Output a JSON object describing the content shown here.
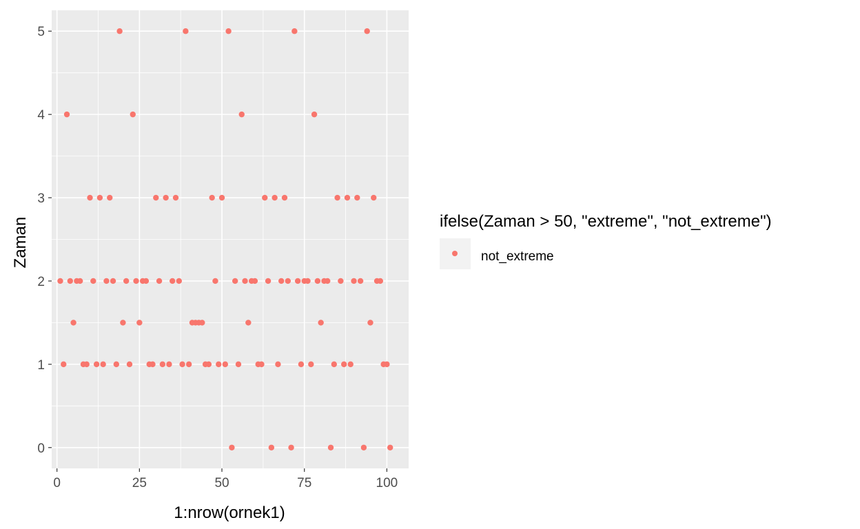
{
  "chart_data": {
    "type": "scatter",
    "xlabel": "1:nrow(ornek1)",
    "ylabel": "Zaman",
    "xlim": [
      -1.6,
      106.6
    ],
    "ylim": [
      -0.25,
      5.25
    ],
    "x_ticks": [
      0,
      25,
      50,
      75,
      100
    ],
    "x_tick_labels": [
      "0",
      "25",
      "50",
      "75",
      "100"
    ],
    "y_ticks": [
      0,
      1,
      2,
      3,
      4,
      5
    ],
    "y_tick_labels": [
      "0",
      "1",
      "2",
      "3",
      "4",
      "5"
    ],
    "grid": true,
    "panel_background": "#ebebeb",
    "legend": {
      "title": "ifelse(Zaman > 50, \"extreme\", \"not_extreme\")",
      "placement": "right",
      "entries": [
        {
          "label": "not_extreme",
          "color": "#f8766d"
        }
      ]
    },
    "series": [
      {
        "name": "not_extreme",
        "color": "#f8766d",
        "x": [
          1,
          2,
          3,
          4,
          5,
          6,
          7,
          8,
          9,
          10,
          11,
          12,
          13,
          14,
          15,
          16,
          17,
          18,
          19,
          20,
          21,
          22,
          23,
          24,
          25,
          26,
          27,
          28,
          29,
          30,
          31,
          32,
          33,
          34,
          35,
          36,
          37,
          38,
          39,
          40,
          41,
          42,
          43,
          44,
          45,
          46,
          47,
          48,
          49,
          50,
          51,
          52,
          53,
          54,
          55,
          56,
          57,
          58,
          59,
          60,
          61,
          62,
          63,
          64,
          65,
          66,
          67,
          68,
          69,
          70,
          71,
          72,
          73,
          74,
          75,
          76,
          77,
          78,
          79,
          80,
          81,
          82,
          83,
          84,
          85,
          86,
          87,
          88,
          89,
          90,
          91,
          92,
          93,
          94,
          95,
          96,
          97,
          98,
          99,
          100,
          101
        ],
        "y": [
          2,
          1,
          4,
          2,
          1.5,
          2,
          2,
          1,
          1,
          3,
          2,
          1,
          3,
          1,
          2,
          3,
          2,
          1,
          5,
          1.5,
          2,
          1,
          4,
          2,
          1.5,
          2,
          2,
          1,
          1,
          3,
          2,
          1,
          3,
          1,
          2,
          3,
          2,
          1,
          5,
          1,
          1.5,
          1.5,
          1.5,
          1.5,
          1,
          1,
          3,
          2,
          1,
          3,
          1,
          5,
          0,
          2,
          1,
          4,
          2,
          1.5,
          2,
          2,
          1,
          1,
          3,
          2,
          0,
          3,
          1,
          2,
          3,
          2,
          0,
          5,
          2,
          1,
          2,
          2,
          1,
          4,
          2,
          1.5,
          2,
          2,
          0,
          1,
          3,
          2,
          1,
          3,
          1,
          2,
          3,
          2,
          0,
          5,
          1.5,
          3,
          2,
          2,
          1,
          1,
          0
        ]
      }
    ]
  }
}
